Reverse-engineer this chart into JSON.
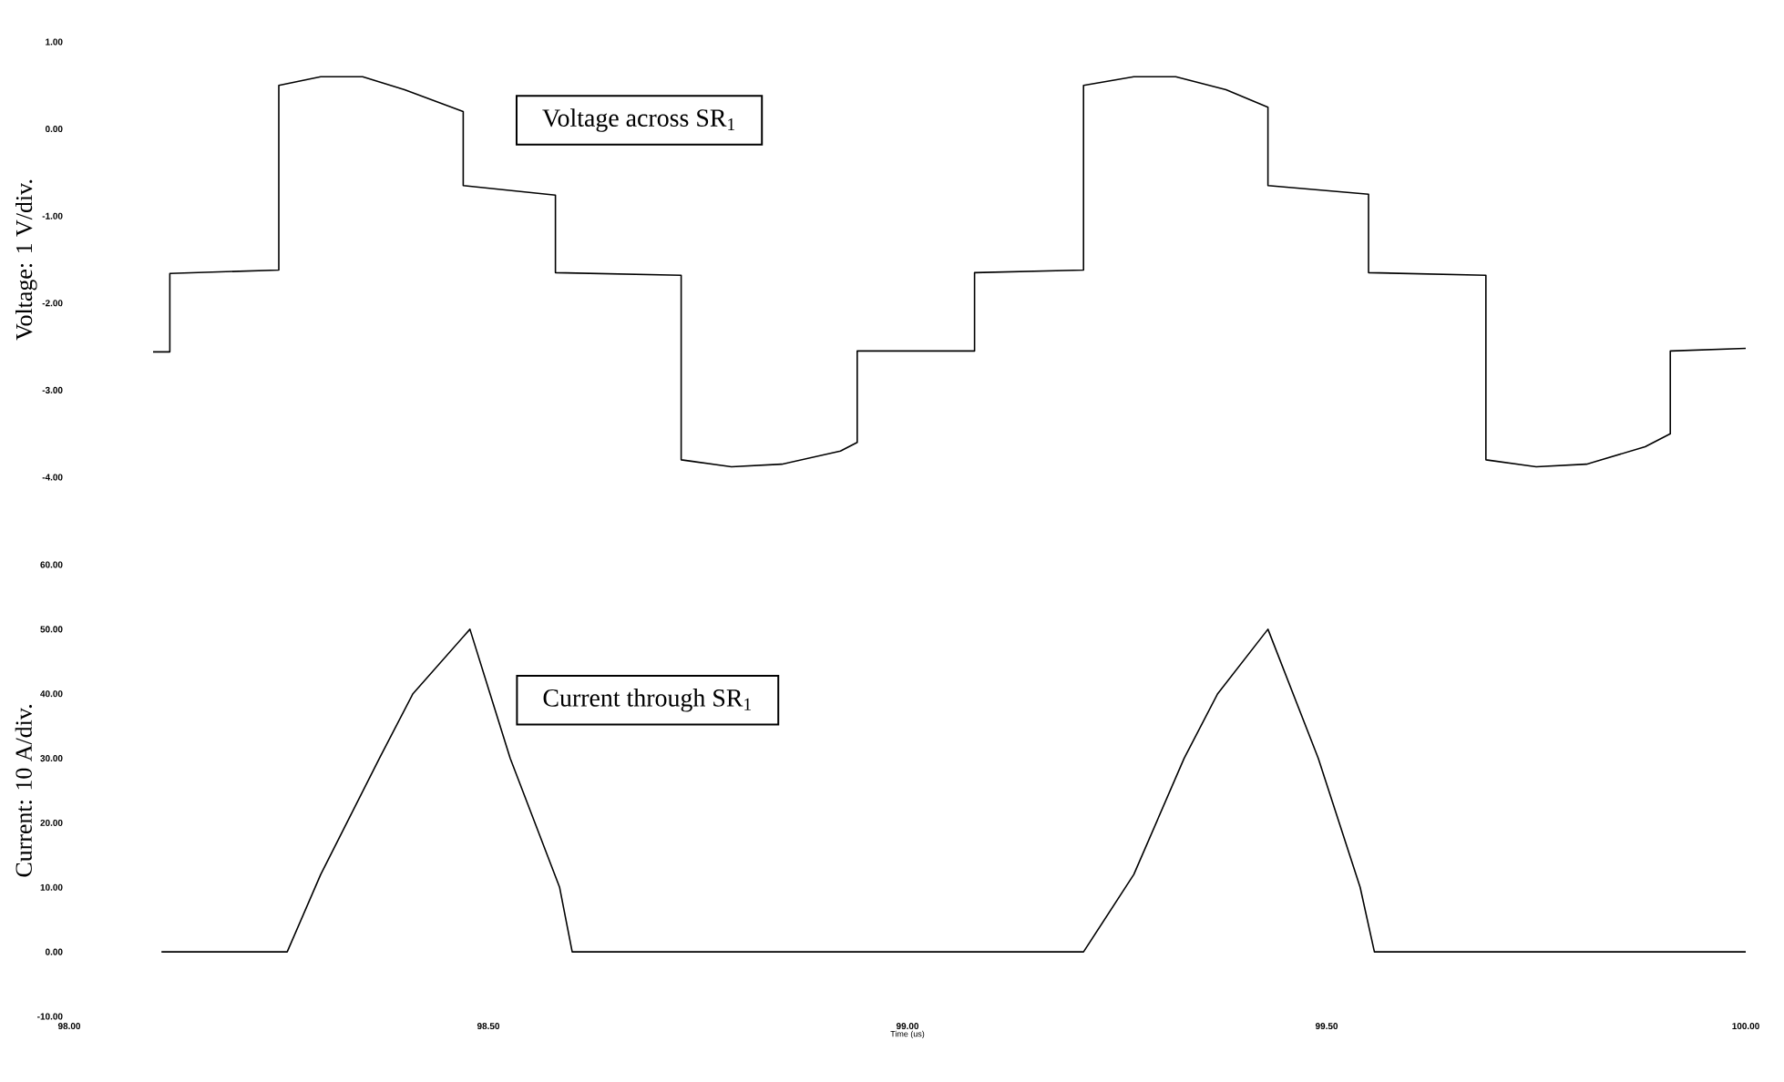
{
  "chart_data": [
    {
      "type": "line",
      "ylabel": "Voltage: 1 V/div.",
      "annotations": [
        "Voltage across SR$_{1}$"
      ],
      "tick_labels": "y",
      "xlim": [
        98.0,
        100.0
      ],
      "xticks": [
        {
          "value": 98.0,
          "label": null
        },
        {
          "value": 98.5,
          "label": null
        },
        {
          "value": 99.0,
          "label": null
        },
        {
          "value": 99.5,
          "label": null
        },
        {
          "value": 100.0,
          "label": null
        }
      ],
      "ylim": [
        -4.0,
        1.0
      ],
      "yticks": [
        {
          "value": 1,
          "label": "1.00"
        },
        {
          "value": 0,
          "label": "0.00"
        },
        {
          "value": -1,
          "label": "-1.00"
        },
        {
          "value": -2,
          "label": "-2.00"
        },
        {
          "value": -3,
          "label": "-3.00"
        },
        {
          "value": -4,
          "label": "-4.00"
        }
      ],
      "series": [
        {
          "color": "#000000",
          "x": [
            98.1,
            98.12,
            98.12,
            98.25,
            98.25,
            98.3,
            98.35,
            98.4,
            98.47,
            98.47,
            98.58,
            98.58,
            98.73,
            98.73,
            98.79,
            98.85,
            98.92,
            98.94,
            98.94,
            99.08,
            99.08,
            99.21,
            99.21,
            99.27,
            99.32,
            99.38,
            99.43,
            99.43,
            99.55,
            99.55,
            99.69,
            99.69,
            99.75,
            99.81,
            99.88,
            99.91,
            99.91,
            100.0
          ],
          "values": [
            -2.56,
            -2.56,
            -1.66,
            -1.62,
            0.5,
            0.6,
            0.6,
            0.45,
            0.2,
            -0.65,
            -0.76,
            -1.65,
            -1.68,
            -3.8,
            -3.88,
            -3.85,
            -3.7,
            -3.6,
            -2.55,
            -2.55,
            -1.65,
            -1.62,
            0.5,
            0.6,
            0.6,
            0.45,
            0.25,
            -0.65,
            -0.75,
            -1.65,
            -1.68,
            -3.8,
            -3.88,
            -3.85,
            -3.65,
            -3.5,
            -2.55,
            -2.52
          ]
        }
      ]
    },
    {
      "type": "line",
      "ylabel": "Current: 10 A/div.",
      "xlabel": "Time (us)",
      "annotations": [
        "Current through SR$_{1}$"
      ],
      "xlim": [
        98.0,
        100.0
      ],
      "xticks": [
        {
          "value": 98.0,
          "label": "98.00"
        },
        {
          "value": 98.5,
          "label": "98.50"
        },
        {
          "value": 99.0,
          "label": "99.00"
        },
        {
          "value": 99.5,
          "label": "99.50"
        },
        {
          "value": 100.0,
          "label": "100.00"
        }
      ],
      "ylim": [
        -10.0,
        60.0
      ],
      "yticks": [
        {
          "value": 60,
          "label": "60.00"
        },
        {
          "value": 50,
          "label": "50.00"
        },
        {
          "value": 40,
          "label": "40.00"
        },
        {
          "value": 30,
          "label": "30.00"
        },
        {
          "value": 20,
          "label": "20.00"
        },
        {
          "value": 10,
          "label": "10.00"
        },
        {
          "value": 0,
          "label": "0.00"
        },
        {
          "value": -10,
          "label": "-10.00"
        }
      ],
      "series": [
        {
          "color": "#000000",
          "x": [
            98.11,
            98.26,
            98.3,
            98.37,
            98.41,
            98.478,
            98.526,
            98.585,
            98.6,
            99.21,
            99.27,
            99.33,
            99.37,
            99.43,
            99.49,
            99.54,
            99.557,
            100.0
          ],
          "values": [
            0,
            0,
            12,
            30,
            40,
            50,
            30,
            10,
            0,
            0,
            12,
            30,
            40,
            50,
            30,
            10,
            0,
            0
          ]
        }
      ]
    }
  ]
}
